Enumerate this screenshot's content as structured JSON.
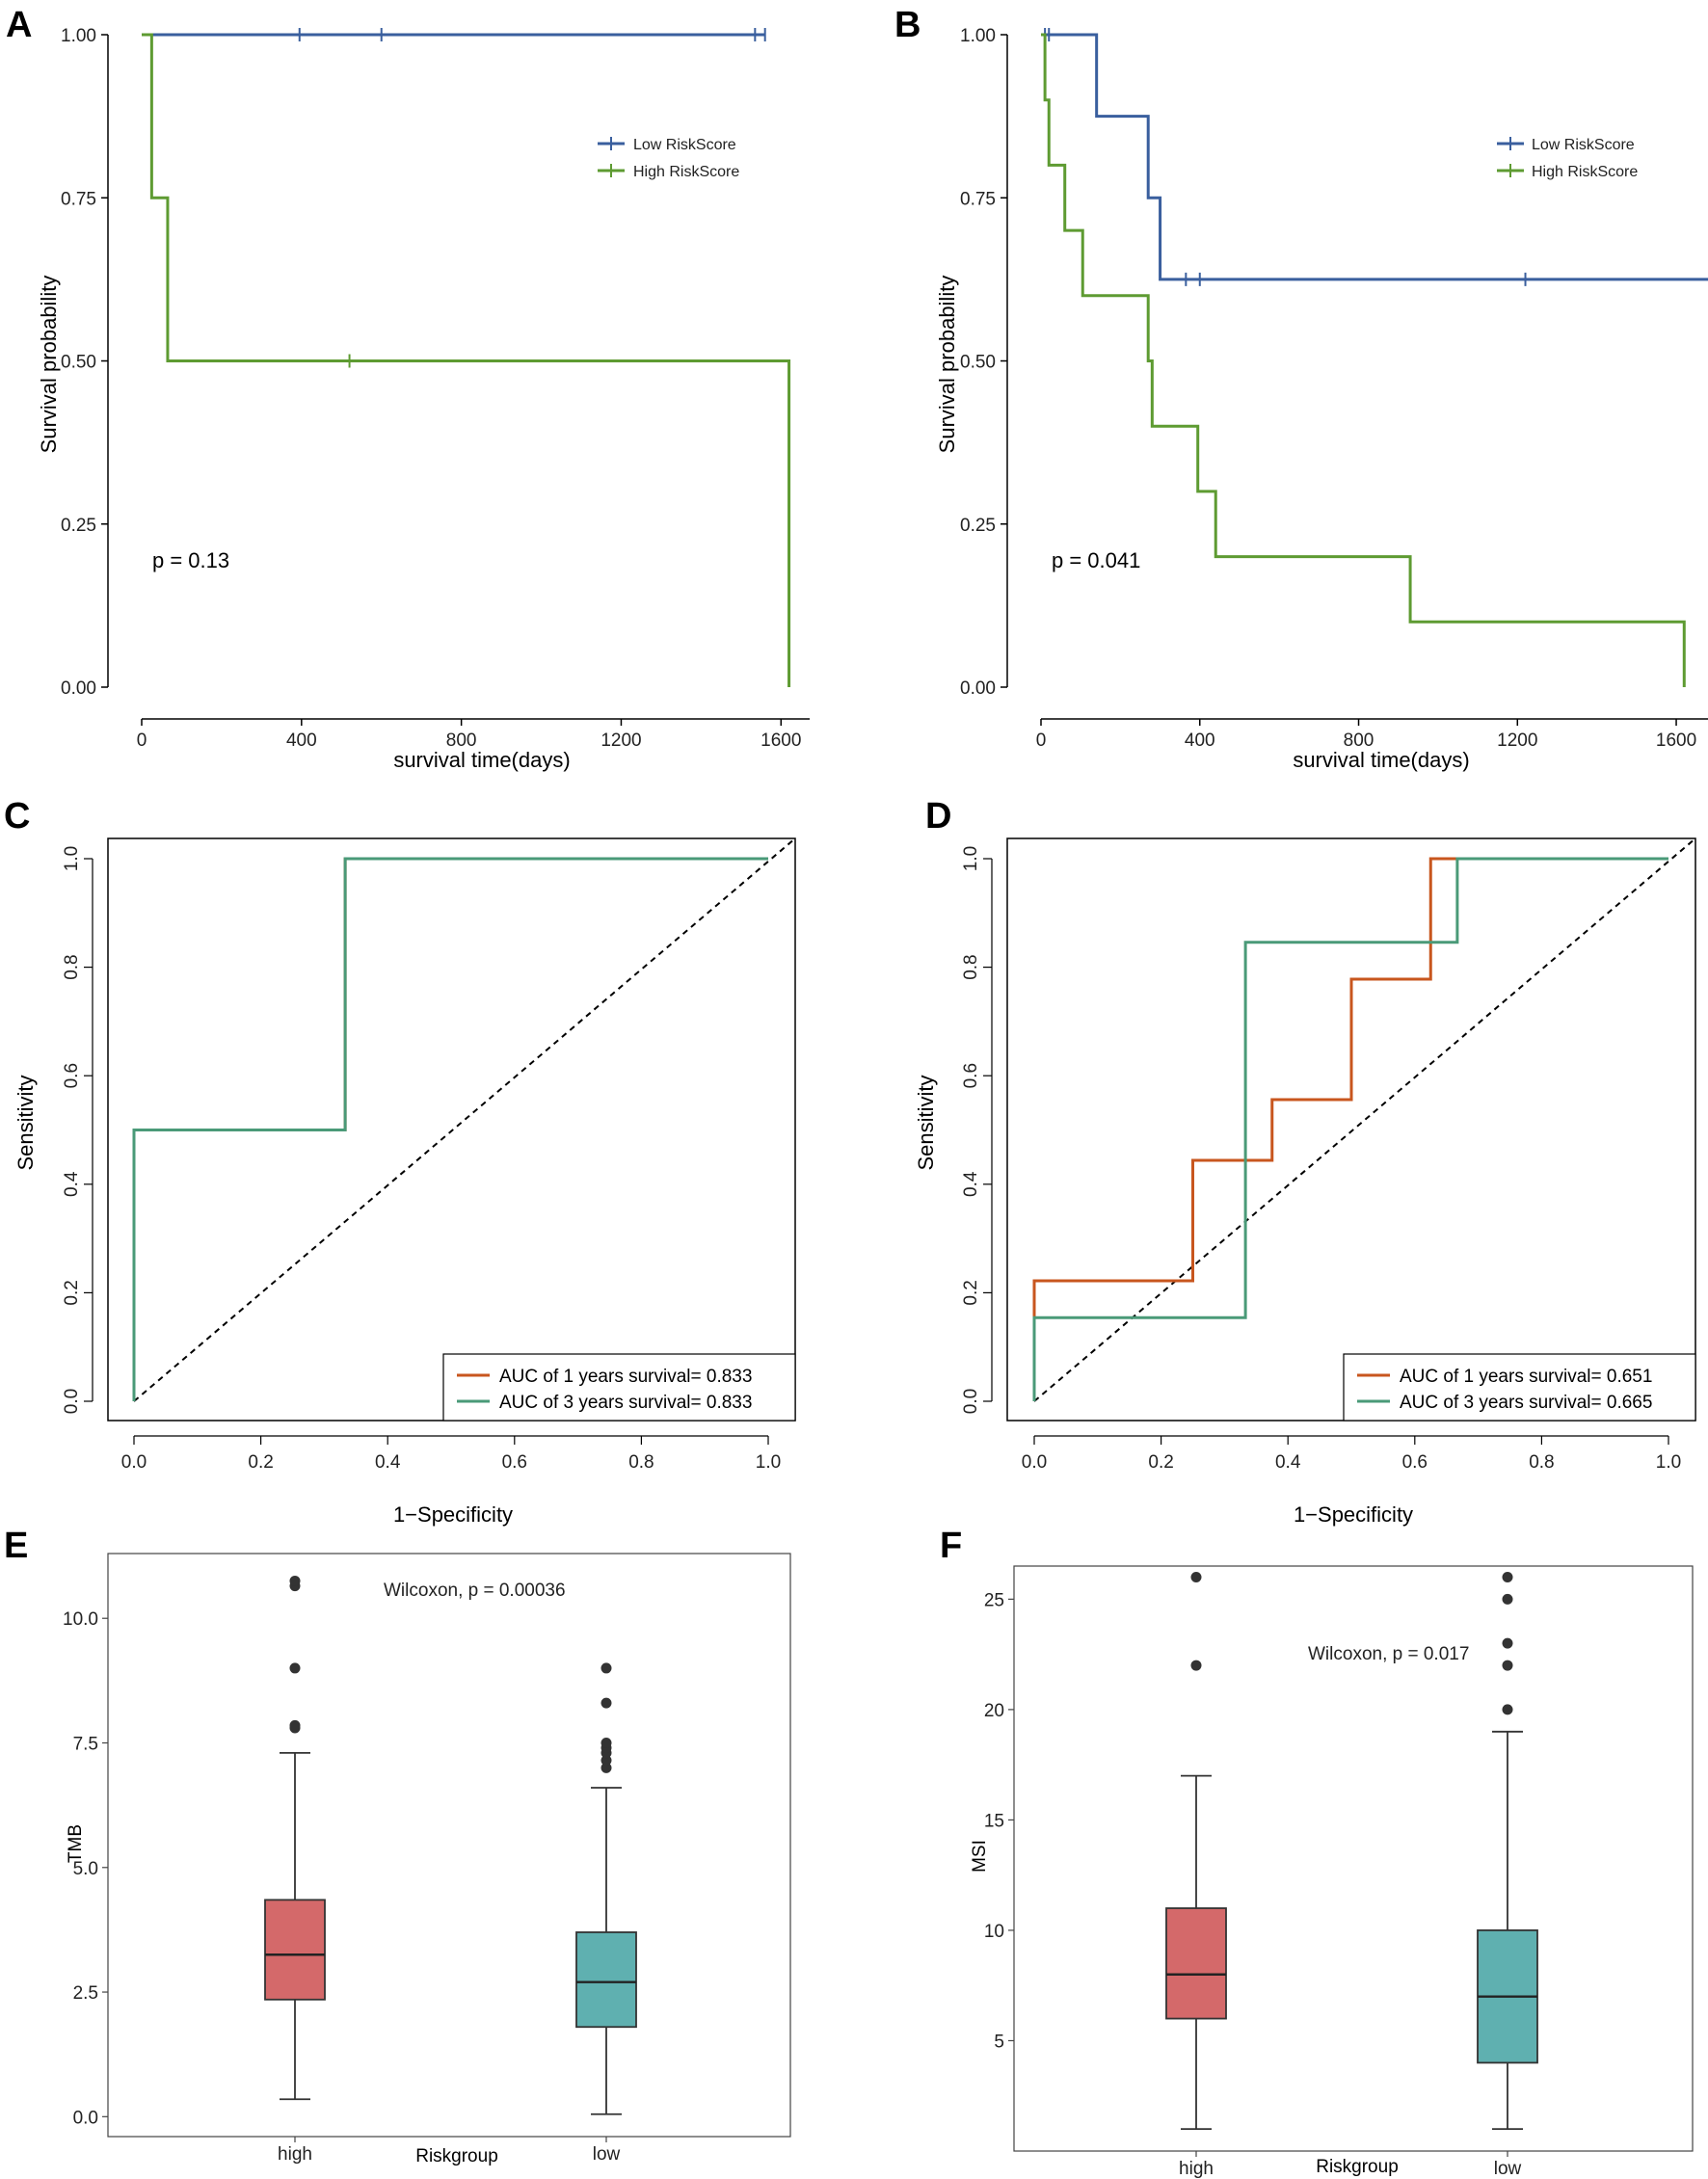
{
  "chart_data": [
    {
      "panel": "A",
      "type": "line",
      "subtype": "kaplan-meier",
      "xlabel": "survival time(days)",
      "ylabel": "Survival probability",
      "xlim": [
        0,
        1650
      ],
      "ylim": [
        0,
        1.0
      ],
      "xticks": [
        "0",
        "400",
        "800",
        "1200",
        "1600"
      ],
      "yticks": [
        "0.00",
        "0.25",
        "0.50",
        "0.75",
        "1.00"
      ],
      "pvalue": "p = 0.13",
      "legend": [
        "Low RiskScore",
        "High RiskScore"
      ],
      "series": [
        {
          "name": "Low RiskScore",
          "color": "#3a5f9e",
          "steps": [
            [
              0,
              1.0
            ],
            [
              1560,
              1.0
            ]
          ],
          "censors": [
            [
              395,
              1.0
            ],
            [
              600,
              1.0
            ],
            [
              1535,
              1.0
            ],
            [
              1560,
              1.0
            ]
          ]
        },
        {
          "name": "High RiskScore",
          "color": "#5e9b32",
          "steps": [
            [
              0,
              1.0
            ],
            [
              25,
              0.75
            ],
            [
              65,
              0.5
            ],
            [
              1620,
              0.0
            ]
          ],
          "censors": [
            [
              520,
              0.5
            ]
          ]
        }
      ]
    },
    {
      "panel": "B",
      "type": "line",
      "subtype": "kaplan-meier",
      "xlabel": "survival time(days)",
      "ylabel": "Survival probability",
      "xlim": [
        0,
        1680
      ],
      "ylim": [
        0,
        1.0
      ],
      "xticks": [
        "0",
        "400",
        "800",
        "1200",
        "1600"
      ],
      "yticks": [
        "0.00",
        "0.25",
        "0.50",
        "0.75",
        "1.00"
      ],
      "pvalue": "p = 0.041",
      "legend": [
        "Low RiskScore",
        "High RiskScore"
      ],
      "series": [
        {
          "name": "Low RiskScore",
          "color": "#3a5f9e",
          "steps": [
            [
              0,
              1.0
            ],
            [
              140,
              0.875
            ],
            [
              270,
              0.75
            ],
            [
              300,
              0.625
            ],
            [
              1680,
              0.625
            ]
          ],
          "censors": [
            [
              10,
              1.0
            ],
            [
              20,
              1.0
            ],
            [
              365,
              0.625
            ],
            [
              400,
              0.625
            ],
            [
              1220,
              0.625
            ]
          ]
        },
        {
          "name": "High RiskScore",
          "color": "#5e9b32",
          "steps": [
            [
              0,
              1.0
            ],
            [
              10,
              0.9
            ],
            [
              20,
              0.8
            ],
            [
              60,
              0.7
            ],
            [
              105,
              0.6
            ],
            [
              270,
              0.5
            ],
            [
              280,
              0.4
            ],
            [
              395,
              0.3
            ],
            [
              440,
              0.2
            ],
            [
              930,
              0.1
            ],
            [
              1620,
              0.0
            ]
          ],
          "censors": []
        }
      ]
    },
    {
      "panel": "C",
      "type": "line",
      "subtype": "roc",
      "xlabel": "1−Specificity",
      "ylabel": "Sensitivity",
      "xlim": [
        0,
        1
      ],
      "ylim": [
        0,
        1
      ],
      "xticks": [
        "0.0",
        "0.2",
        "0.4",
        "0.6",
        "0.8",
        "1.0"
      ],
      "yticks": [
        "0.0",
        "0.2",
        "0.4",
        "0.6",
        "0.8",
        "1.0"
      ],
      "legend": [
        "AUC of 1 years survival= 0.833",
        "AUC of 3 years survival= 0.833"
      ],
      "series": [
        {
          "name": "AUC of 1 years survival= 0.833",
          "color": "#c8561e",
          "points": [
            [
              0,
              0
            ],
            [
              0,
              0.5
            ],
            [
              0.333,
              0.5
            ],
            [
              0.333,
              1.0
            ],
            [
              1.0,
              1.0
            ]
          ]
        },
        {
          "name": "AUC of 3 years survival= 0.833",
          "color": "#4a9a78",
          "points": [
            [
              0,
              0
            ],
            [
              0,
              0.5
            ],
            [
              0.333,
              0.5
            ],
            [
              0.333,
              1.0
            ],
            [
              1.0,
              1.0
            ]
          ]
        }
      ]
    },
    {
      "panel": "D",
      "type": "line",
      "subtype": "roc",
      "xlabel": "1−Specificity",
      "ylabel": "Sensitivity",
      "xlim": [
        0,
        1
      ],
      "ylim": [
        0,
        1
      ],
      "xticks": [
        "0.0",
        "0.2",
        "0.4",
        "0.6",
        "0.8",
        "1.0"
      ],
      "yticks": [
        "0.0",
        "0.2",
        "0.4",
        "0.6",
        "0.8",
        "1.0"
      ],
      "legend": [
        "AUC of 1 years survival= 0.651",
        "AUC of 3 years survival= 0.665"
      ],
      "series": [
        {
          "name": "AUC of 1 years survival= 0.651",
          "color": "#c8561e",
          "points": [
            [
              0,
              0
            ],
            [
              0,
              0.222
            ],
            [
              0.25,
              0.222
            ],
            [
              0.25,
              0.444
            ],
            [
              0.375,
              0.444
            ],
            [
              0.375,
              0.556
            ],
            [
              0.5,
              0.556
            ],
            [
              0.5,
              0.778
            ],
            [
              0.625,
              0.778
            ],
            [
              0.625,
              1.0
            ],
            [
              1.0,
              1.0
            ]
          ]
        },
        {
          "name": "AUC of 3 years survival= 0.665",
          "color": "#4a9a78",
          "points": [
            [
              0,
              0
            ],
            [
              0,
              0.154
            ],
            [
              0.333,
              0.154
            ],
            [
              0.333,
              0.846
            ],
            [
              0.667,
              0.846
            ],
            [
              0.667,
              1.0
            ],
            [
              1.0,
              1.0
            ]
          ]
        }
      ]
    },
    {
      "panel": "E",
      "type": "box",
      "xlabel": "Riskgroup",
      "ylabel": "TMB",
      "ylim": [
        -0.4,
        11.3
      ],
      "yticks": [
        "0.0",
        "2.5",
        "5.0",
        "7.5",
        "10.0"
      ],
      "annotation": "Wilcoxon, p = 0.00036",
      "categories": [
        "high",
        "low"
      ],
      "boxes": [
        {
          "group": "high",
          "color": "#d4696a",
          "min": 0.35,
          "q1": 2.35,
          "median": 3.25,
          "q3": 4.35,
          "max": 7.3,
          "outliers": [
            7.8,
            7.85,
            9.0,
            10.65,
            10.75
          ]
        },
        {
          "group": "low",
          "color": "#5fb0b0",
          "min": 0.05,
          "q1": 1.8,
          "median": 2.7,
          "q3": 3.7,
          "max": 6.6,
          "outliers": [
            7.0,
            7.15,
            7.3,
            7.4,
            7.5,
            8.3,
            9.0
          ]
        }
      ]
    },
    {
      "panel": "F",
      "type": "box",
      "xlabel": "Riskgroup",
      "ylabel": "MSI",
      "ylim": [
        0,
        26.5
      ],
      "yticks": [
        "5",
        "10",
        "15",
        "20",
        "25"
      ],
      "annotation": "Wilcoxon, p = 0.017",
      "categories": [
        "high",
        "low"
      ],
      "boxes": [
        {
          "group": "high",
          "color": "#d4696a",
          "min": 1,
          "q1": 6,
          "median": 8,
          "q3": 11,
          "max": 17,
          "outliers": [
            22,
            26
          ]
        },
        {
          "group": "low",
          "color": "#5fb0b0",
          "min": 1,
          "q1": 4,
          "median": 7,
          "q3": 10,
          "max": 19,
          "outliers": [
            20,
            22,
            23,
            25,
            26
          ]
        }
      ]
    }
  ]
}
